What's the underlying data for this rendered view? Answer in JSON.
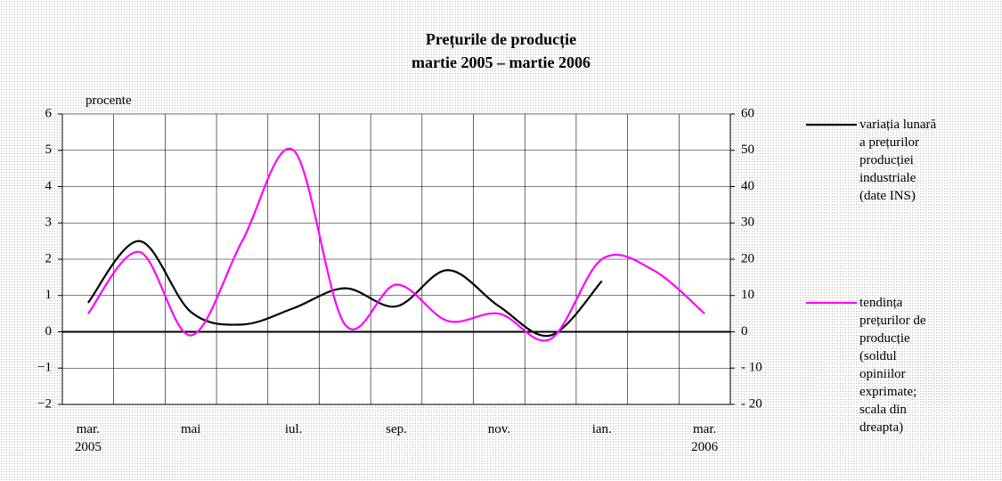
{
  "chart_data": {
    "type": "line",
    "title": "Prețurile de producție",
    "subtitle": "martie 2005 – martie 2006",
    "y_label": "procente",
    "categories": [
      "mar.\n2005",
      null,
      "mai",
      null,
      "iul.",
      null,
      "sep.",
      null,
      "nov.",
      null,
      "ian.",
      null,
      "mar.\n2006"
    ],
    "series": [
      {
        "name": "variația lunară\na prețurilor\nproducției\nindustriale\n(date INS)",
        "color": "#000000",
        "values": [
          0.8,
          2.5,
          0.55,
          0.2,
          0.65,
          1.2,
          0.7,
          1.7,
          0.7,
          -0.1,
          1.4,
          null,
          null
        ]
      },
      {
        "name": "tendința\nprețurilor de\nproducție\n(soldul\nopiniilor\nexprimate;\nscala din\ndreapta)",
        "color": "#ff00ff",
        "axis": "y2",
        "values": [
          5,
          22,
          -1,
          25,
          50,
          2,
          13,
          3,
          5,
          -2,
          20,
          17,
          5
        ]
      }
    ],
    "ylim": [
      -2,
      6
    ],
    "yticks": [
      {
        "value": -2,
        "label": "−2"
      },
      {
        "value": -1,
        "label": "−1"
      },
      0,
      1,
      2,
      3,
      4,
      5,
      6
    ],
    "y2lim": [
      -20,
      60
    ],
    "y2ticks": [
      {
        "value": -20,
        "label": "- 20"
      },
      {
        "value": -10,
        "label": "- 10"
      },
      0,
      10,
      20,
      30,
      40,
      50,
      60
    ],
    "grid": true
  }
}
